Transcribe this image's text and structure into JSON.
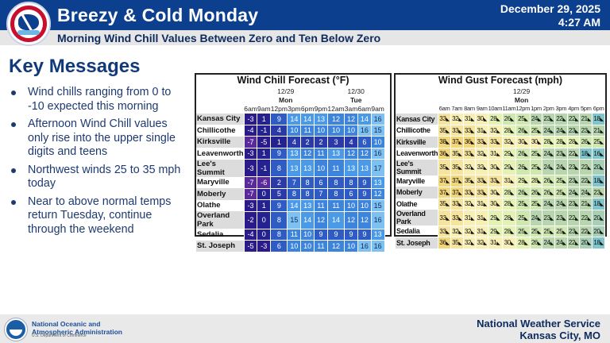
{
  "header": {
    "title": "Breezy & Cold Monday",
    "subtitle": "Morning Wind Chill Values Between Zero and Ten Below Zero",
    "date": "December 29, 2025",
    "time": "4:27 AM",
    "logo": "nws-logo-icon",
    "colors": {
      "bar": "#0d3f8f",
      "subbar": "#e6e6e6"
    }
  },
  "key_messages": {
    "title": "Key Messages",
    "items": [
      "Wind chills ranging from 0 to -10 expected this morning",
      "Afternoon Wind Chill values only rise into the upper single digits and teens",
      "Northwest winds 25 to 35 mph today",
      "Near to above normal temps return Tuesday, continue through the weekend"
    ]
  },
  "wind_chill": {
    "title": "Wind Chill Forecast (°F)",
    "days": [
      {
        "date": "12/29",
        "day": "Mon",
        "span": 6
      },
      {
        "date": "12/30",
        "day": "Tue",
        "span": 4
      }
    ],
    "times": [
      "6am",
      "9am",
      "12pm",
      "3pm",
      "6pm",
      "9pm",
      "12am",
      "3am",
      "6am",
      "9am"
    ],
    "rows": [
      {
        "loc": "Kansas City",
        "values": [
          -3,
          1,
          9,
          14,
          14,
          13,
          12,
          12,
          14,
          16
        ]
      },
      {
        "loc": "Chillicothe",
        "values": [
          -4,
          -1,
          4,
          10,
          11,
          10,
          10,
          10,
          16,
          15
        ]
      },
      {
        "loc": "Kirksville",
        "values": [
          -7,
          -5,
          1,
          4,
          2,
          2,
          3,
          4,
          6,
          10
        ]
      },
      {
        "loc": "Leavenworth",
        "values": [
          -3,
          1,
          9,
          13,
          12,
          11,
          13,
          12,
          12,
          16
        ]
      },
      {
        "loc": "Lee's Summit",
        "values": [
          -3,
          -1,
          8,
          13,
          13,
          10,
          11,
          13,
          13,
          17
        ]
      },
      {
        "loc": "Maryville",
        "values": [
          -7,
          -6,
          2,
          7,
          8,
          6,
          8,
          8,
          9,
          13
        ]
      },
      {
        "loc": "Moberly",
        "values": [
          -7,
          0,
          5,
          8,
          8,
          7,
          8,
          6,
          9,
          12
        ]
      },
      {
        "loc": "Olathe",
        "values": [
          -3,
          1,
          9,
          14,
          13,
          11,
          11,
          10,
          10,
          15
        ]
      },
      {
        "loc": "Overland Park",
        "values": [
          -2,
          0,
          8,
          15,
          14,
          12,
          14,
          12,
          12,
          16
        ]
      },
      {
        "loc": "Sedalia",
        "values": [
          -4,
          0,
          8,
          11,
          10,
          9,
          9,
          9,
          9,
          13
        ]
      },
      {
        "loc": "St. Joseph",
        "values": [
          -5,
          -3,
          6,
          10,
          10,
          11,
          12,
          10,
          16,
          16
        ]
      }
    ]
  },
  "wind_gust": {
    "title": "Wind Gust Forecast (mph)",
    "date": "12/29",
    "day": "Mon",
    "arrow": "◣",
    "times": [
      "6am",
      "7am",
      "8am",
      "9am",
      "10am",
      "11am",
      "12pm",
      "1pm",
      "2pm",
      "3pm",
      "4pm",
      "5pm",
      "6pm"
    ],
    "rows": [
      {
        "loc": "Kansas City",
        "values": [
          33,
          32,
          31,
          30,
          28,
          26,
          25,
          24,
          23,
          22,
          22,
          21,
          18
        ]
      },
      {
        "loc": "Chillicothe",
        "values": [
          35,
          33,
          33,
          31,
          32,
          28,
          26,
          25,
          24,
          24,
          23,
          23,
          21
        ]
      },
      {
        "loc": "Kirksville",
        "values": [
          38,
          37,
          36,
          33,
          33,
          32,
          30,
          30,
          28,
          28,
          28,
          26,
          25
        ]
      },
      {
        "loc": "Leavenworth",
        "values": [
          36,
          35,
          33,
          32,
          31,
          29,
          26,
          25,
          24,
          23,
          22,
          18,
          16
        ]
      },
      {
        "loc": "Lee's Summit",
        "values": [
          35,
          35,
          32,
          32,
          30,
          29,
          26,
          25,
          24,
          24,
          23,
          22,
          20
        ]
      },
      {
        "loc": "Maryville",
        "values": [
          37,
          37,
          35,
          33,
          33,
          31,
          29,
          28,
          26,
          25,
          23,
          22,
          18
        ]
      },
      {
        "loc": "Moberly",
        "values": [
          37,
          37,
          33,
          33,
          30,
          28,
          26,
          26,
          26,
          25,
          24,
          24,
          23
        ]
      },
      {
        "loc": "Olathe",
        "values": [
          35,
          33,
          32,
          31,
          30,
          28,
          25,
          25,
          24,
          24,
          23,
          21,
          18
        ]
      },
      {
        "loc": "Overland Park",
        "values": [
          33,
          33,
          31,
          31,
          29,
          28,
          25,
          24,
          23,
          23,
          22,
          22,
          20
        ]
      },
      {
        "loc": "Sedalia",
        "values": [
          33,
          32,
          32,
          31,
          29,
          28,
          25,
          25,
          25,
          25,
          23,
          22,
          20
        ]
      },
      {
        "loc": "St. Joseph",
        "values": [
          36,
          35,
          32,
          32,
          31,
          30,
          28,
          26,
          24,
          24,
          22,
          20,
          18
        ]
      }
    ]
  },
  "footer": {
    "noaa_line1": "National Oceanic and",
    "noaa_line2": "Atmospheric Administration",
    "noaa_line3": "U.S. Department of Commerce",
    "nws_line1": "National Weather Service",
    "nws_line2": "Kansas City, MO"
  }
}
